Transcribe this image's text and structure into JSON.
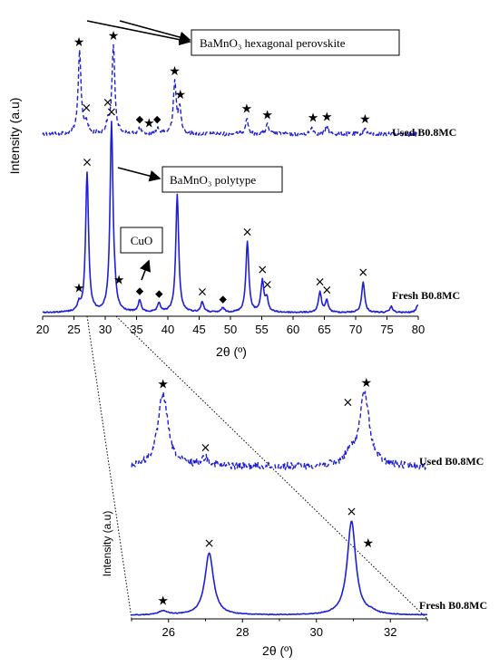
{
  "chart_data": [
    {
      "type": "line",
      "title": "",
      "xlabel": "2θ (º)",
      "ylabel": "Intensity (a.u)",
      "xlim": [
        20,
        80
      ],
      "x_ticks": [
        "20",
        "25",
        "30",
        "35",
        "40",
        "45",
        "50",
        "55",
        "60",
        "65",
        "70",
        "75",
        "80"
      ],
      "series": [
        {
          "name": "Used B0.8MC",
          "style": "dashed",
          "baseline": 0.5,
          "peaks": [
            [
              25.9,
              0.88
            ],
            [
              27.0,
              0.12
            ],
            [
              30.4,
              0.1
            ],
            [
              31.3,
              0.95
            ],
            [
              35.5,
              0.06
            ],
            [
              38.4,
              0.06
            ],
            [
              41.1,
              0.55
            ],
            [
              41.9,
              0.26
            ],
            [
              52.6,
              0.17
            ],
            [
              55.9,
              0.1
            ],
            [
              63.0,
              0.07
            ],
            [
              65.4,
              0.08
            ],
            [
              71.5,
              0.06
            ]
          ]
        },
        {
          "name": "Fresh B0.8MC",
          "style": "solid",
          "baseline": 0.0,
          "peaks": [
            [
              25.8,
              0.05
            ],
            [
              27.1,
              0.95
            ],
            [
              31.0,
              1.28
            ],
            [
              31.5,
              0.07
            ],
            [
              35.5,
              0.08
            ],
            [
              38.6,
              0.06
            ],
            [
              41.5,
              0.8
            ],
            [
              45.5,
              0.07
            ],
            [
              48.8,
              0.03
            ],
            [
              52.7,
              0.48
            ],
            [
              55.1,
              0.21
            ],
            [
              55.8,
              0.09
            ],
            [
              64.3,
              0.14
            ],
            [
              65.4,
              0.08
            ],
            [
              71.2,
              0.21
            ],
            [
              75.7,
              0.04
            ],
            [
              79.9,
              0.05
            ]
          ]
        }
      ],
      "markers": [
        {
          "symbol": "★",
          "x": 25.8,
          "series": "Used B0.8MC"
        },
        {
          "symbol": "★",
          "x": 31.3,
          "series": "Used B0.8MC"
        },
        {
          "symbol": "×",
          "x": 27.0,
          "series": "Used B0.8MC"
        },
        {
          "symbol": "×",
          "x": 30.4,
          "series": "Used B0.8MC"
        },
        {
          "symbol": "◆",
          "x": 35.5,
          "series": "Used B0.8MC"
        },
        {
          "symbol": "★",
          "x": 37.0,
          "series": "Used B0.8MC"
        },
        {
          "symbol": "◆",
          "x": 38.3,
          "series": "Used B0.8MC"
        },
        {
          "symbol": "★",
          "x": 41.1,
          "series": "Used B0.8MC"
        },
        {
          "symbol": "★",
          "x": 42.0,
          "series": "Used B0.8MC"
        },
        {
          "symbol": "★",
          "x": 52.6,
          "series": "Used B0.8MC"
        },
        {
          "symbol": "★",
          "x": 55.9,
          "series": "Used B0.8MC"
        },
        {
          "symbol": "★",
          "x": 63.2,
          "series": "Used B0.8MC"
        },
        {
          "symbol": "★",
          "x": 65.4,
          "series": "Used B0.8MC"
        },
        {
          "symbol": "★",
          "x": 71.5,
          "series": "Used B0.8MC"
        },
        {
          "symbol": "★",
          "x": 25.8,
          "series": "Fresh B0.8MC"
        },
        {
          "symbol": "×",
          "x": 27.1,
          "series": "Fresh B0.8MC"
        },
        {
          "symbol": "×",
          "x": 31.0,
          "series": "Fresh B0.8MC"
        },
        {
          "symbol": "★",
          "x": 32.2,
          "series": "Fresh B0.8MC"
        },
        {
          "symbol": "◆",
          "x": 35.5,
          "series": "Fresh B0.8MC"
        },
        {
          "symbol": "◆",
          "x": 38.6,
          "series": "Fresh B0.8MC"
        },
        {
          "symbol": "×",
          "x": 41.5,
          "series": "Fresh B0.8MC"
        },
        {
          "symbol": "×",
          "x": 45.5,
          "series": "Fresh B0.8MC"
        },
        {
          "symbol": "◆",
          "x": 48.8,
          "series": "Fresh B0.8MC"
        },
        {
          "symbol": "×",
          "x": 52.7,
          "series": "Fresh B0.8MC"
        },
        {
          "symbol": "×",
          "x": 55.1,
          "series": "Fresh B0.8MC"
        },
        {
          "symbol": "×",
          "x": 55.9,
          "series": "Fresh B0.8MC"
        },
        {
          "symbol": "×",
          "x": 64.3,
          "series": "Fresh B0.8MC"
        },
        {
          "symbol": "×",
          "x": 65.4,
          "series": "Fresh B0.8MC"
        },
        {
          "symbol": "×",
          "x": 71.2,
          "series": "Fresh B0.8MC"
        }
      ],
      "annotations": [
        {
          "text": "BaMnO₃ hexagonal perovskite",
          "points_to": "Used B0.8MC peaks at 2θ ≈ 26 and 31"
        },
        {
          "text": "BaMnO₃ polytype",
          "points_to": "Fresh B0.8MC peak at 2θ ≈ 31"
        },
        {
          "text": "CuO",
          "points_to": "Fresh B0.8MC peak at 2θ ≈ 35.5"
        }
      ],
      "grid": false,
      "color": "#1f1fd8"
    },
    {
      "type": "line",
      "title": "",
      "xlabel": "2θ (º)",
      "ylabel": "Intensity (a.u)",
      "xlim": [
        25,
        33
      ],
      "x_ticks": [
        "26",
        "28",
        "30",
        "32"
      ],
      "series": [
        {
          "name": "Used B0.8MC",
          "style": "dashed",
          "baseline": 0.48,
          "peaks": [
            [
              25.85,
              0.55
            ],
            [
              27.0,
              0.06
            ],
            [
              30.9,
              0.08
            ],
            [
              31.3,
              0.55
            ]
          ]
        },
        {
          "name": "Fresh B0.8MC",
          "style": "solid",
          "baseline": 0.0,
          "peaks": [
            [
              25.85,
              0.03
            ],
            [
              27.1,
              0.47
            ],
            [
              30.95,
              0.71
            ],
            [
              31.5,
              0.015
            ]
          ]
        }
      ],
      "markers": [
        {
          "symbol": "★",
          "x": 25.85,
          "series": "Used B0.8MC"
        },
        {
          "symbol": "×",
          "x": 27.0,
          "series": "Used B0.8MC"
        },
        {
          "symbol": "×",
          "x": 30.85,
          "series": "Used B0.8MC"
        },
        {
          "symbol": "★",
          "x": 31.35,
          "series": "Used B0.8MC"
        },
        {
          "symbol": "★",
          "x": 25.85,
          "series": "Fresh B0.8MC"
        },
        {
          "symbol": "×",
          "x": 27.1,
          "series": "Fresh B0.8MC"
        },
        {
          "symbol": "×",
          "x": 30.95,
          "series": "Fresh B0.8MC"
        },
        {
          "symbol": "★",
          "x": 31.4,
          "series": "Fresh B0.8MC"
        }
      ],
      "grid": false,
      "color": "#1f1fd8"
    }
  ]
}
